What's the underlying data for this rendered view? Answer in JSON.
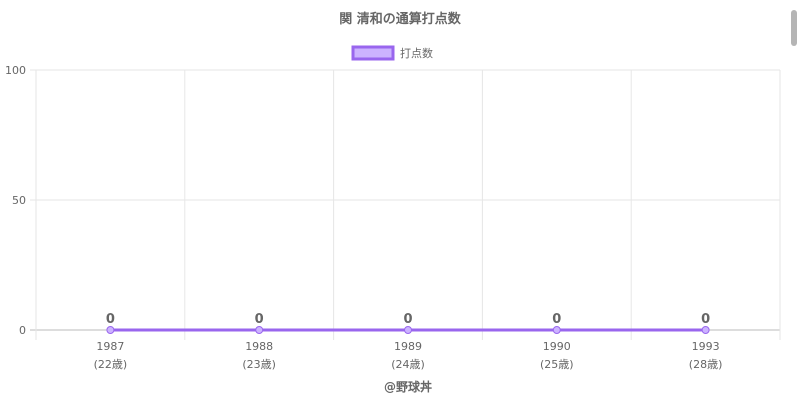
{
  "chart_data": {
    "type": "line",
    "title": "関 清和の通算打点数",
    "categories": [
      "1987",
      "1988",
      "1989",
      "1990",
      "1993"
    ],
    "sublabels": [
      "(22歳)",
      "(23歳)",
      "(24歳)",
      "(25歳)",
      "(28歳)"
    ],
    "series": [
      {
        "name": "打点数",
        "values": [
          0,
          0,
          0,
          0,
          0
        ]
      }
    ],
    "ylim": [
      0,
      100
    ],
    "yticks": [
      0,
      50,
      100
    ],
    "grid": true,
    "legend": "top",
    "data_labels": true,
    "colors": {
      "line": "#9966ee",
      "fill": "#ccb3ff",
      "grid": "#e6e6e6",
      "text": "#666666"
    }
  },
  "footer": "@野球丼"
}
